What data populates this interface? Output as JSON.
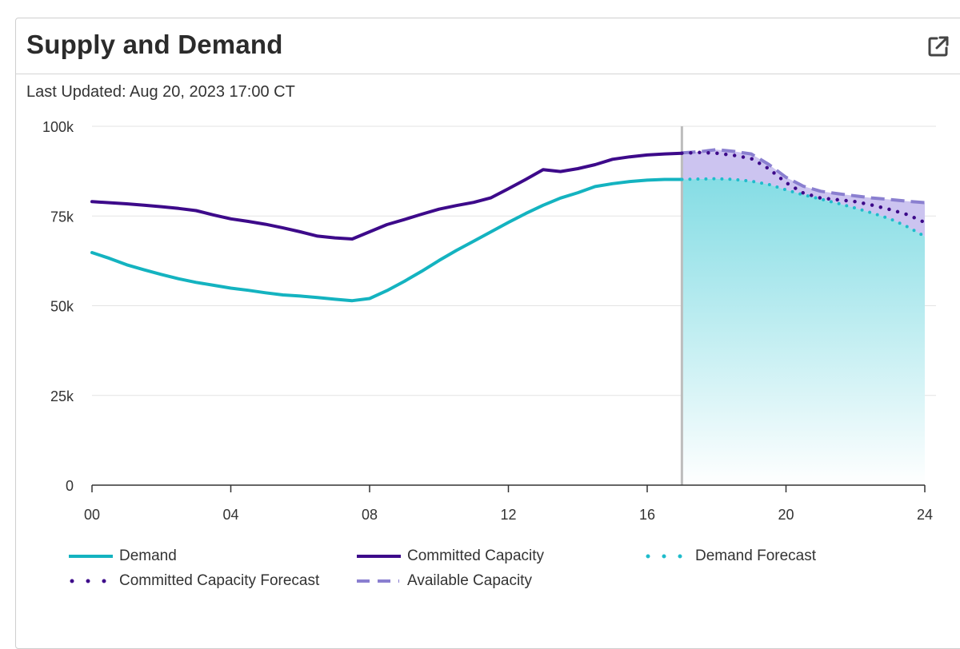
{
  "panel": {
    "title": "Supply and Demand",
    "last_updated": "Last Updated: Aug 20, 2023 17:00 CT",
    "popout_icon": "external-link-icon"
  },
  "colors": {
    "demand": "#14b3c0",
    "committed": "#3d0a8a",
    "demand_forecast": "#1fbccb",
    "committed_forecast": "#3d0a8a",
    "available": "#8a7fd0",
    "available_fill": "#c9c1ef",
    "forecast_fill_top": "#7fdbe3",
    "now_line": "#bdbdbd",
    "grid": "#e3e3e3",
    "axis": "#333333"
  },
  "legend": [
    {
      "key": "demand",
      "label": "Demand",
      "style": "solid"
    },
    {
      "key": "committed",
      "label": "Committed Capacity",
      "style": "solid"
    },
    {
      "key": "demand_forecast",
      "label": "Demand Forecast",
      "style": "dotted"
    },
    {
      "key": "committed_forecast",
      "label": "Committed Capacity Forecast",
      "style": "dotted"
    },
    {
      "key": "available",
      "label": "Available Capacity",
      "style": "dashed"
    }
  ],
  "chart_data": {
    "type": "line",
    "x_ticks": [
      "00",
      "04",
      "08",
      "12",
      "16",
      "20",
      "24"
    ],
    "y_ticks": [
      "0",
      "25k",
      "50k",
      "75k",
      "100k"
    ],
    "xlim": [
      0,
      24
    ],
    "ylim": [
      0,
      100000
    ],
    "now_hour": 17,
    "grid": true,
    "legend_position": "bottom",
    "series": [
      {
        "name": "Demand",
        "style": "solid",
        "x": [
          0,
          0.5,
          1,
          1.5,
          2,
          2.5,
          3,
          3.5,
          4,
          4.5,
          5,
          5.5,
          6,
          6.5,
          7,
          7.5,
          8,
          8.5,
          9,
          9.5,
          10,
          10.5,
          11,
          11.5,
          12,
          12.5,
          13,
          13.5,
          14,
          14.5,
          15,
          15.5,
          16,
          16.5,
          17
        ],
        "y": [
          64800,
          63200,
          61400,
          60000,
          58700,
          57500,
          56500,
          55700,
          54900,
          54300,
          53600,
          53000,
          52700,
          52300,
          51800,
          51400,
          52000,
          54200,
          56800,
          59600,
          62600,
          65400,
          68000,
          70600,
          73200,
          75700,
          78000,
          80000,
          81500,
          83200,
          84000,
          84600,
          85000,
          85200,
          85200
        ]
      },
      {
        "name": "Committed Capacity",
        "style": "solid",
        "x": [
          0,
          0.5,
          1,
          1.5,
          2,
          2.5,
          3,
          3.5,
          4,
          4.5,
          5,
          5.5,
          6,
          6.5,
          7,
          7.5,
          8,
          8.5,
          9,
          9.5,
          10,
          10.5,
          11,
          11.5,
          12,
          12.5,
          13,
          13.5,
          14,
          14.5,
          15,
          15.5,
          16,
          16.5,
          17
        ],
        "y": [
          79000,
          78700,
          78400,
          78000,
          77600,
          77100,
          76500,
          75300,
          74200,
          73500,
          72700,
          71700,
          70600,
          69400,
          68900,
          68600,
          70600,
          72600,
          74000,
          75500,
          76900,
          77900,
          78800,
          80100,
          82600,
          85200,
          87900,
          87400,
          88200,
          89300,
          90800,
          91500,
          92000,
          92300,
          92500
        ]
      },
      {
        "name": "Demand Forecast",
        "style": "dotted",
        "x": [
          17,
          17.5,
          18,
          18.5,
          19,
          19.5,
          20,
          20.5,
          21,
          21.5,
          22,
          22.5,
          23,
          23.5,
          24
        ],
        "y": [
          85200,
          85300,
          85400,
          85200,
          84700,
          83800,
          82300,
          80900,
          79700,
          78500,
          77200,
          75800,
          74200,
          72000,
          69300
        ]
      },
      {
        "name": "Committed Capacity Forecast",
        "style": "dotted",
        "x": [
          17,
          17.5,
          18,
          18.5,
          19,
          19.5,
          20,
          20.5,
          21,
          21.5,
          22,
          22.5,
          23,
          23.5,
          24
        ],
        "y": [
          92500,
          92700,
          92500,
          91900,
          91000,
          88200,
          84300,
          81400,
          80000,
          79500,
          79000,
          78000,
          76800,
          75400,
          73200
        ]
      },
      {
        "name": "Available Capacity",
        "style": "dashed",
        "x": [
          17,
          17.5,
          18,
          18.5,
          19,
          19.5,
          20,
          20.5,
          21,
          21.5,
          22,
          22.5,
          23,
          23.5,
          24
        ],
        "y": [
          92600,
          92900,
          93500,
          93000,
          92300,
          89400,
          85800,
          83300,
          81900,
          81200,
          80600,
          80000,
          79600,
          79100,
          78700
        ]
      }
    ]
  }
}
